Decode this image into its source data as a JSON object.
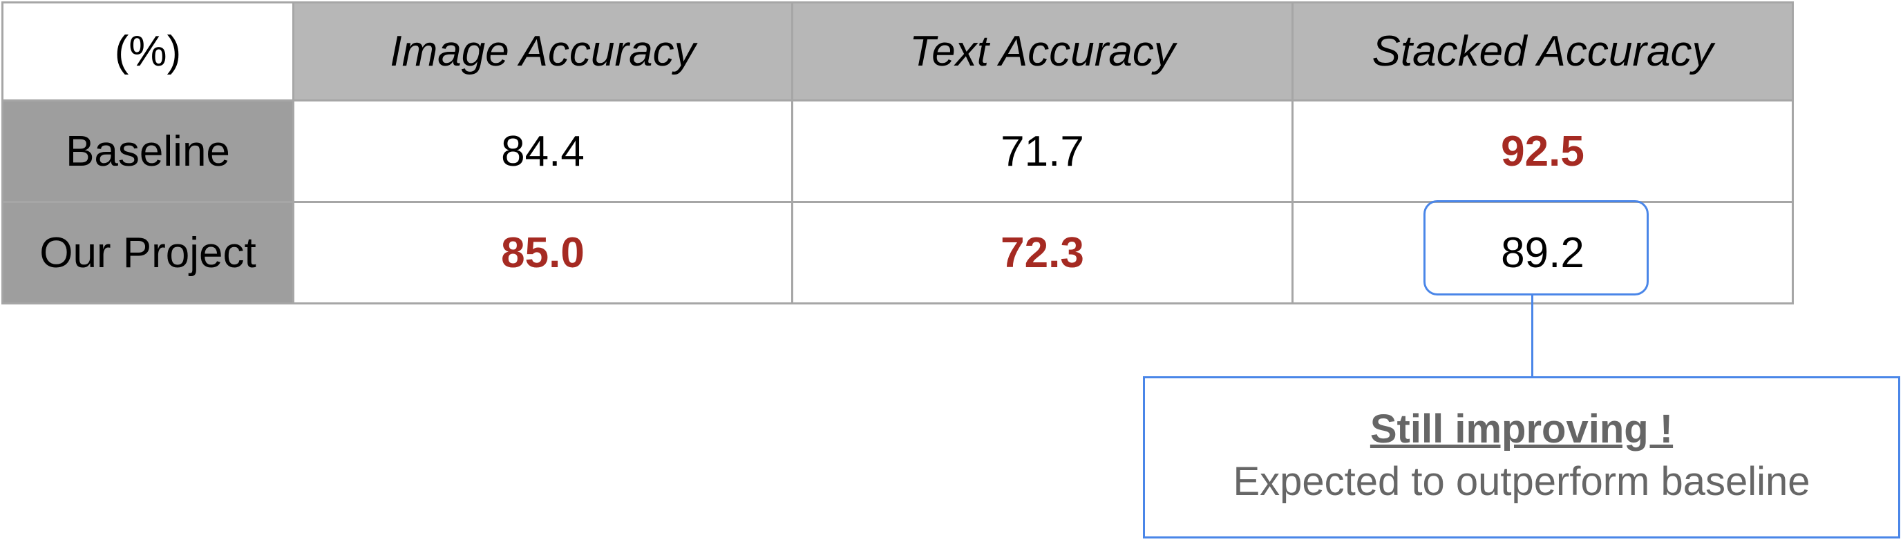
{
  "chart_data": {
    "type": "table",
    "corner_label": "(%)",
    "columns": [
      "Image Accuracy",
      "Text Accuracy",
      "Stacked Accuracy"
    ],
    "rows": [
      {
        "label": "Baseline",
        "values": [
          "84.4",
          "71.7",
          "92.5"
        ],
        "best": [
          false,
          false,
          true
        ]
      },
      {
        "label": "Our Project",
        "values": [
          "85.0",
          "72.3",
          "89.2"
        ],
        "best": [
          true,
          true,
          false
        ]
      }
    ],
    "highlighted_cell": {
      "row": 1,
      "col": 2
    },
    "colors": {
      "header_bg": "#b7b7b7",
      "row_header_bg": "#9e9e9e",
      "best_value": "#a52a22",
      "callout_border": "#4a86e8",
      "callout_text": "#666666",
      "grid": "#a6a6a6"
    }
  },
  "callout": {
    "title": "Still improving !",
    "body": "Expected to outperform baseline"
  }
}
